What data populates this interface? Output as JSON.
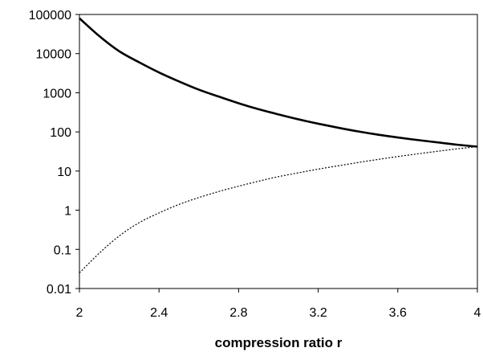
{
  "chart_data": {
    "type": "line",
    "title": "",
    "xlabel": "compression ratio r",
    "ylabel": "",
    "xlim": [
      2,
      4
    ],
    "ylim": [
      0.01,
      100000
    ],
    "yscale": "log",
    "grid": false,
    "legend": "none",
    "x_ticks": [
      2,
      2.4,
      2.8,
      3.2,
      3.6,
      4
    ],
    "x_tick_labels": [
      "2",
      "2.4",
      "2.8",
      "3.2",
      "3.6",
      "4"
    ],
    "y_ticks": [
      0.01,
      0.1,
      1,
      10,
      100,
      1000,
      10000,
      100000
    ],
    "y_tick_labels": [
      "0.01",
      "0.1",
      "1",
      "10",
      "100",
      "1000",
      "10000",
      "100000"
    ],
    "series": [
      {
        "style": "solid",
        "color": "#000000",
        "x": [
          2.0,
          2.1,
          2.2,
          2.3,
          2.4,
          2.5,
          2.6,
          2.7,
          2.8,
          2.9,
          3.0,
          3.1,
          3.2,
          3.3,
          3.4,
          3.5,
          3.6,
          3.7,
          3.8,
          3.9,
          4.0
        ],
        "y": [
          80000,
          28000,
          11500,
          6000,
          3300,
          1950,
          1200,
          800,
          540,
          380,
          280,
          210,
          162,
          128,
          103,
          85,
          72,
          62,
          54,
          47,
          42
        ]
      },
      {
        "style": "dotted",
        "color": "#000000",
        "x": [
          2.0,
          2.1,
          2.2,
          2.3,
          2.4,
          2.5,
          2.6,
          2.7,
          2.8,
          2.9,
          3.0,
          3.1,
          3.2,
          3.3,
          3.4,
          3.5,
          3.6,
          3.7,
          3.8,
          3.9,
          4.0
        ],
        "y": [
          0.025,
          0.08,
          0.22,
          0.48,
          0.85,
          1.4,
          2.1,
          3.0,
          4.1,
          5.5,
          7.2,
          9.0,
          11.2,
          13.6,
          16.5,
          19.8,
          23.5,
          27.5,
          32,
          37,
          42
        ]
      }
    ]
  }
}
